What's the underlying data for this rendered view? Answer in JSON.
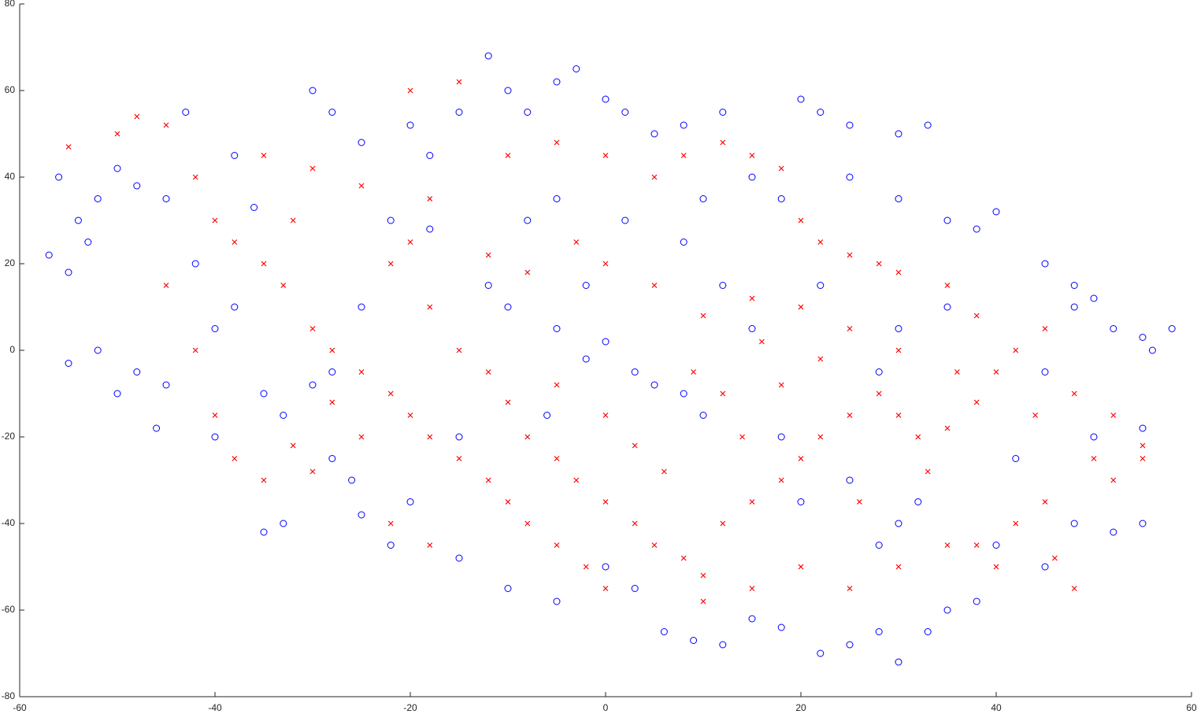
{
  "chart_data": {
    "type": "scatter",
    "xlim": [
      -60,
      60
    ],
    "xticks": [
      -60,
      -40,
      -20,
      0,
      20,
      40,
      60
    ],
    "ylim": [
      -80,
      80
    ],
    "yticks": [
      -80,
      -60,
      -40,
      -20,
      0,
      20,
      40,
      60,
      80
    ],
    "grid": false,
    "series": [
      {
        "color": "#0000ff",
        "marker": "circle",
        "x": [
          -57,
          -55,
          -53,
          -56,
          -52,
          -50,
          -48,
          -54,
          -45,
          -43,
          -50,
          -52,
          -55,
          -48,
          -46,
          -40,
          -38,
          -42,
          -35,
          -33,
          -30,
          -28,
          -26,
          -35,
          -33,
          -30,
          -28,
          -25,
          -20,
          -18,
          -15,
          -12,
          -10,
          -8,
          -5,
          -3,
          0,
          2,
          5,
          8,
          12,
          -36,
          -38,
          -22,
          -18,
          -12,
          -10,
          -5,
          -2,
          0,
          3,
          5,
          8,
          10,
          12,
          15,
          18,
          -20,
          -25,
          -22,
          -15,
          -10,
          -5,
          0,
          3,
          6,
          9,
          12,
          15,
          18,
          22,
          25,
          28,
          30,
          33,
          35,
          38,
          30,
          28,
          32,
          25,
          20,
          40,
          45,
          48,
          52,
          55,
          52,
          55,
          58,
          56,
          48,
          50,
          45,
          42,
          50,
          55,
          20,
          22,
          25,
          30,
          33,
          25,
          30,
          35,
          38,
          40,
          45,
          48,
          35,
          30,
          28,
          22,
          18,
          15,
          10,
          8,
          2,
          -5,
          -8,
          -2,
          -6,
          -15,
          -25,
          -28,
          -40,
          -45
        ],
        "values": [
          22,
          18,
          25,
          40,
          35,
          42,
          38,
          30,
          35,
          55,
          -10,
          0,
          -3,
          -5,
          -18,
          5,
          10,
          20,
          -10,
          -15,
          -8,
          -25,
          -30,
          -42,
          -40,
          60,
          55,
          48,
          52,
          45,
          55,
          68,
          60,
          55,
          62,
          65,
          58,
          55,
          50,
          52,
          55,
          33,
          45,
          30,
          28,
          15,
          10,
          5,
          -2,
          2,
          -5,
          -8,
          -10,
          -15,
          15,
          5,
          -20,
          -35,
          -38,
          -45,
          -48,
          -55,
          -58,
          -50,
          -55,
          -65,
          -67,
          -68,
          -62,
          -64,
          -70,
          -68,
          -65,
          -72,
          -65,
          -60,
          -58,
          -40,
          -45,
          -35,
          -30,
          -35,
          -45,
          -50,
          -40,
          -42,
          -40,
          5,
          3,
          5,
          0,
          10,
          12,
          -5,
          -25,
          -20,
          -18,
          58,
          55,
          52,
          50,
          52,
          40,
          35,
          30,
          28,
          32,
          20,
          15,
          10,
          5,
          -5,
          15,
          35,
          40,
          35,
          25,
          30,
          35,
          30,
          15,
          -15,
          -20,
          10,
          -5,
          -20,
          -8
        ]
      },
      {
        "color": "#ff0000",
        "marker": "cross",
        "x": [
          -55,
          -50,
          -48,
          -45,
          -42,
          -40,
          -38,
          -35,
          -33,
          -30,
          -28,
          -25,
          -22,
          -20,
          -18,
          -15,
          -12,
          -10,
          -8,
          -5,
          -2,
          0,
          -45,
          -42,
          -40,
          -38,
          -35,
          -32,
          -30,
          -28,
          -25,
          -22,
          -20,
          -18,
          -15,
          -12,
          -10,
          -8,
          -5,
          -3,
          0,
          3,
          5,
          8,
          10,
          12,
          15,
          18,
          20,
          22,
          25,
          28,
          30,
          32,
          35,
          38,
          40,
          42,
          45,
          48,
          50,
          52,
          55,
          45,
          42,
          40,
          38,
          35,
          30,
          25,
          20,
          15,
          10,
          -20,
          -15,
          -10,
          -5,
          0,
          5,
          8,
          12,
          15,
          18,
          20,
          22,
          25,
          28,
          30,
          35,
          38,
          30,
          25,
          20,
          15,
          10,
          5,
          0,
          -3,
          -8,
          -12,
          -18,
          -25,
          -30,
          -32,
          -35,
          -22,
          -18,
          -5,
          0,
          3,
          6,
          9,
          12,
          14,
          16,
          18,
          22,
          26,
          33,
          36,
          44,
          48,
          46,
          52,
          55
        ],
        "values": [
          47,
          50,
          54,
          52,
          40,
          30,
          25,
          20,
          15,
          5,
          0,
          -5,
          -10,
          -15,
          -20,
          -25,
          -30,
          -35,
          -40,
          -45,
          -50,
          -55,
          15,
          0,
          -15,
          -25,
          -30,
          -22,
          -28,
          -12,
          -20,
          20,
          25,
          10,
          0,
          -5,
          -12,
          -20,
          -25,
          -30,
          -35,
          -40,
          -45,
          -48,
          -52,
          -40,
          -35,
          -30,
          -25,
          -20,
          -15,
          -10,
          -15,
          -20,
          -18,
          -12,
          -5,
          0,
          5,
          -10,
          -25,
          -30,
          -25,
          -35,
          -40,
          -50,
          -45,
          -45,
          -50,
          -55,
          -50,
          -55,
          -58,
          60,
          62,
          45,
          48,
          45,
          40,
          45,
          48,
          45,
          42,
          30,
          25,
          22,
          20,
          18,
          15,
          8,
          0,
          5,
          10,
          12,
          8,
          15,
          20,
          25,
          18,
          22,
          35,
          38,
          42,
          30,
          45,
          -40,
          -45,
          -8,
          -15,
          -22,
          -28,
          -5,
          -10,
          -20,
          2,
          -8,
          -2,
          -35,
          -28,
          -5,
          -15,
          -55,
          -48,
          -15,
          -22
        ]
      }
    ]
  }
}
